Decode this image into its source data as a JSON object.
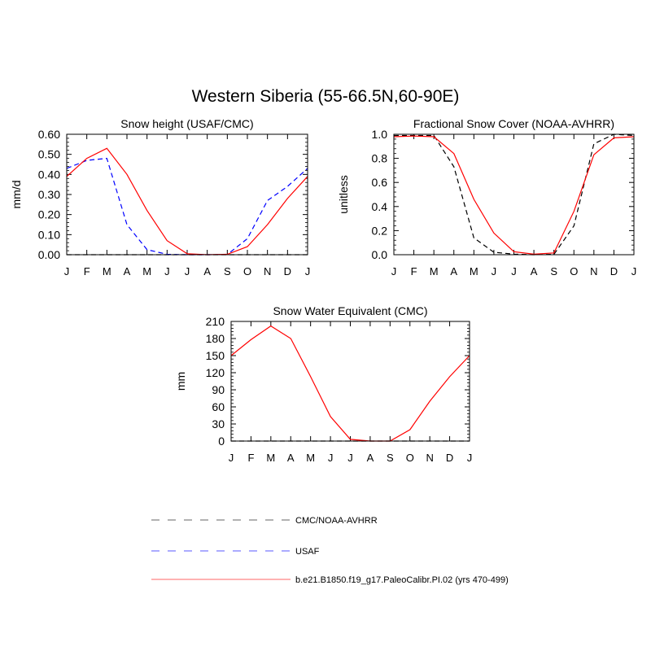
{
  "figure": {
    "title": "Western Siberia (55-66.5N,60-90E)"
  },
  "months": [
    "J",
    "F",
    "M",
    "A",
    "M",
    "J",
    "J",
    "A",
    "S",
    "O",
    "N",
    "D",
    "J"
  ],
  "colors": {
    "obs": "#000000",
    "usaf": "#0000ff",
    "model": "#ff0000"
  },
  "chart_data": [
    {
      "type": "line",
      "title": "Snow height (USAF/CMC)",
      "ylabel": "mm/d",
      "xlabel": "",
      "ylim": [
        0,
        0.6
      ],
      "yticks": [
        0,
        0.1,
        0.2,
        0.3,
        0.4,
        0.5,
        0.6
      ],
      "ytick_labels": [
        "0.00",
        "0.10",
        "0.20",
        "0.30",
        "0.40",
        "0.50",
        "0.60"
      ],
      "series": [
        {
          "key": "obs",
          "style": "dashed",
          "color": "#000000",
          "values": [
            0,
            0,
            0,
            0,
            0,
            0,
            0,
            0,
            0,
            0,
            0,
            0,
            0
          ]
        },
        {
          "key": "usaf",
          "style": "dashed",
          "color": "#0000ff",
          "values": [
            0.43,
            0.47,
            0.48,
            0.15,
            0.025,
            0.002,
            0,
            0,
            0.001,
            0.08,
            0.27,
            0.34,
            0.43
          ]
        },
        {
          "key": "model",
          "style": "solid",
          "color": "#ff0000",
          "values": [
            0.39,
            0.48,
            0.53,
            0.4,
            0.22,
            0.07,
            0.005,
            0,
            0.002,
            0.04,
            0.15,
            0.28,
            0.39
          ]
        }
      ]
    },
    {
      "type": "line",
      "title": "Fractional Snow Cover (NOAA-AVHRR)",
      "ylabel": "unitless",
      "xlabel": "",
      "ylim": [
        0,
        1
      ],
      "yticks": [
        0,
        0.2,
        0.4,
        0.6,
        0.8,
        1.0
      ],
      "ytick_labels": [
        "0.0",
        "0.2",
        "0.4",
        "0.6",
        "0.8",
        "1.0"
      ],
      "series": [
        {
          "key": "obs",
          "style": "dashed",
          "color": "#000000",
          "values": [
            0.99,
            0.99,
            0.99,
            0.73,
            0.14,
            0.02,
            0.005,
            0,
            0.003,
            0.24,
            0.92,
            1.0,
            0.99
          ]
        },
        {
          "key": "model",
          "style": "solid",
          "color": "#ff0000",
          "values": [
            0.98,
            0.985,
            0.98,
            0.84,
            0.46,
            0.18,
            0.025,
            0.005,
            0.015,
            0.36,
            0.83,
            0.97,
            0.98
          ]
        }
      ]
    },
    {
      "type": "line",
      "title": "Snow Water Equivalent (CMC)",
      "ylabel": "mm",
      "xlabel": "",
      "ylim": [
        0,
        210
      ],
      "yticks": [
        0,
        30,
        60,
        90,
        120,
        150,
        180,
        210
      ],
      "ytick_labels": [
        "0",
        "30",
        "60",
        "90",
        "120",
        "150",
        "180",
        "210"
      ],
      "series": [
        {
          "key": "obs",
          "style": "dashed",
          "color": "#000000",
          "values": [
            0,
            0,
            0,
            0,
            0,
            0,
            0,
            0,
            0,
            0,
            0,
            0,
            0
          ]
        },
        {
          "key": "model",
          "style": "solid",
          "color": "#ff0000",
          "values": [
            150,
            178,
            202,
            180,
            113,
            43,
            3,
            0,
            0,
            20,
            70,
            113,
            150
          ]
        }
      ]
    }
  ],
  "legend": [
    {
      "label": "CMC/NOAA-AVHRR",
      "color": "#999999",
      "style": "dashed"
    },
    {
      "label": "USAF",
      "color": "#8f8fff",
      "style": "dashed"
    },
    {
      "label": "b.e21.B1850.f19_g17.PaleoCalibr.PI.02 (yrs 470-499)",
      "color": "#ff9999",
      "style": "solid"
    }
  ]
}
